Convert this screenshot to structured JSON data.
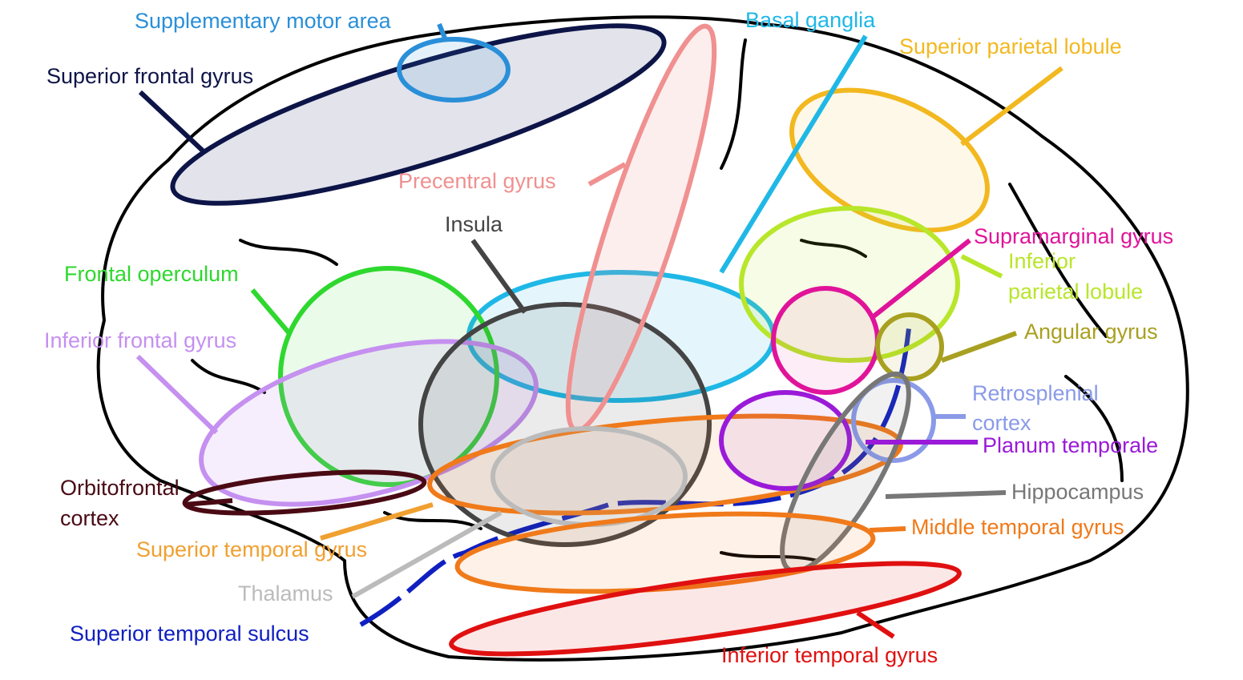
{
  "title_free_diagram": true,
  "labels": [
    {
      "lines": [
        "Supplementary motor area"
      ]
    },
    {
      "lines": [
        "Superior frontal gyrus"
      ]
    },
    {
      "lines": [
        "Basal ganglia"
      ]
    },
    {
      "lines": [
        "Superior parietal lobule"
      ]
    },
    {
      "lines": [
        "Precentral gyrus"
      ]
    },
    {
      "lines": [
        "Insula"
      ]
    },
    {
      "lines": [
        "Frontal operculum"
      ]
    },
    {
      "lines": [
        "Supramarginal gyrus"
      ]
    },
    {
      "lines": [
        "Inferior",
        "parietal lobule"
      ]
    },
    {
      "lines": [
        "Angular gyrus"
      ]
    },
    {
      "lines": [
        "Inferior frontal gyrus"
      ]
    },
    {
      "lines": [
        "Retrosplenial",
        "cortex"
      ]
    },
    {
      "lines": [
        "Planum temporale"
      ]
    },
    {
      "lines": [
        "Orbitofrontal",
        "cortex"
      ]
    },
    {
      "lines": [
        "Hippocampus"
      ]
    },
    {
      "lines": [
        "Middle temporal gyrus"
      ]
    },
    {
      "lines": [
        "Superior temporal gyrus"
      ]
    },
    {
      "lines": [
        "Thalamus"
      ]
    },
    {
      "lines": [
        "Superior temporal sulcus"
      ]
    },
    {
      "lines": [
        "Inferior temporal gyrus"
      ]
    }
  ]
}
